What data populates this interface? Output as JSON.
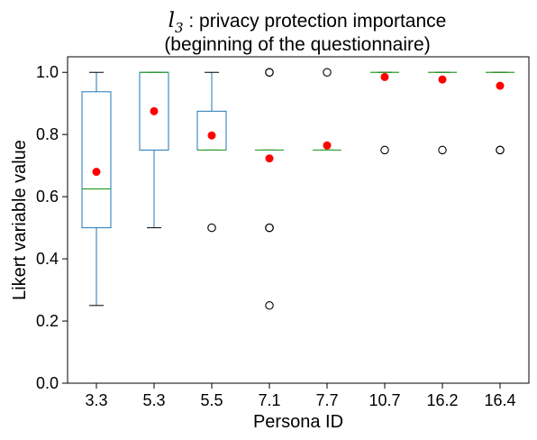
{
  "chart_data": {
    "type": "box",
    "title_var": "l",
    "title_sub": "3",
    "title_rest": " : privacy protection importance",
    "subtitle": "(beginning of the questionnaire)",
    "xlabel": "Persona ID",
    "ylabel": "Likert variable value",
    "ylim": [
      0,
      1.05
    ],
    "yticks": [
      "0.0",
      "0.2",
      "0.4",
      "0.6",
      "0.8",
      "1.0"
    ],
    "categories": [
      "3.3",
      "5.3",
      "5.5",
      "7.1",
      "7.7",
      "10.7",
      "16.2",
      "16.4"
    ],
    "boxes": [
      {
        "whislo": 0.25,
        "q1": 0.5,
        "med": 0.625,
        "q3": 0.9375,
        "whishi": 1.0,
        "mean": 0.68,
        "fliers": []
      },
      {
        "whislo": 0.5,
        "q1": 0.75,
        "med": 1.0,
        "q3": 1.0,
        "whishi": 1.0,
        "mean": 0.875,
        "fliers": []
      },
      {
        "whislo": 0.75,
        "q1": 0.75,
        "med": 0.75,
        "q3": 0.875,
        "whishi": 1.0,
        "mean": 0.797,
        "fliers": [
          0.5
        ]
      },
      {
        "whislo": 0.75,
        "q1": 0.75,
        "med": 0.75,
        "q3": 0.75,
        "whishi": 0.75,
        "mean": 0.723,
        "fliers": [
          1.0,
          1.0,
          0.5,
          0.5,
          0.25
        ]
      },
      {
        "whislo": 0.75,
        "q1": 0.75,
        "med": 0.75,
        "q3": 0.75,
        "whishi": 0.75,
        "mean": 0.765,
        "fliers": [
          1.0
        ]
      },
      {
        "whislo": 1.0,
        "q1": 1.0,
        "med": 1.0,
        "q3": 1.0,
        "whishi": 1.0,
        "mean": 0.985,
        "fliers": [
          0.75
        ]
      },
      {
        "whislo": 1.0,
        "q1": 1.0,
        "med": 1.0,
        "q3": 1.0,
        "whishi": 1.0,
        "mean": 0.977,
        "fliers": [
          0.75
        ]
      },
      {
        "whislo": 1.0,
        "q1": 1.0,
        "med": 1.0,
        "q3": 1.0,
        "whishi": 1.0,
        "mean": 0.957,
        "fliers": [
          0.75,
          0.75
        ]
      }
    ],
    "grid": false,
    "legend": "none",
    "colors": {
      "box": "#1f77b4",
      "median": "#2ca02c",
      "mean": "#ff0000",
      "whisker_cap": "#000000",
      "flier": "#000000"
    }
  }
}
